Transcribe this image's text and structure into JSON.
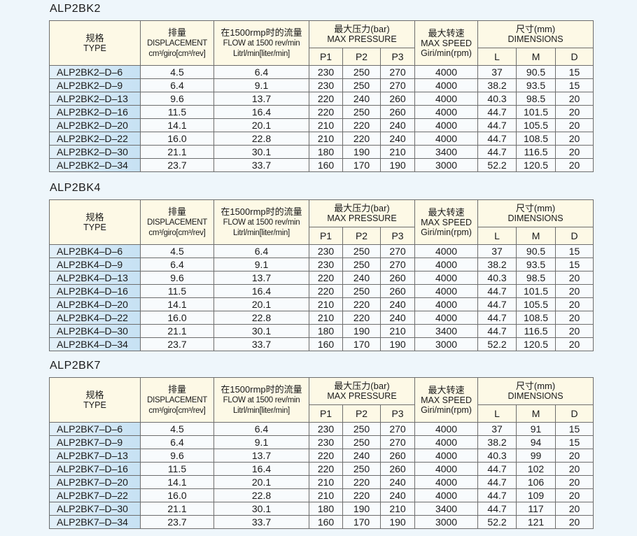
{
  "headers": {
    "type_cn": "规格",
    "type_en": "TYPE",
    "disp_cn": "排量",
    "disp_en": "DISPLACEMENT",
    "disp_unit": "cm³/giro[cm³/rev]",
    "flow_cn": "在1500rmp时的流量",
    "flow_en": "FLOW at 1500 rev/min",
    "flow_unit": "Litrl/min[liter/min]",
    "pres_cn": "最大压力(bar)",
    "pres_en": "MAX PRESSURE",
    "speed_cn": "最大转速",
    "speed_en": "MAX SPEED",
    "speed_unit": "Giri/min(rpm)",
    "dim_cn": "尺寸(mm)",
    "dim_en": "DIMENSIONS",
    "p1": "P1",
    "p2": "P2",
    "p3": "P3",
    "l": "L",
    "m": "M",
    "d": "D"
  },
  "tables": [
    {
      "title": "ALP2BK2",
      "rows": [
        [
          "ALP2BK2–D–6",
          "4.5",
          "6.4",
          "230",
          "250",
          "270",
          "4000",
          "37",
          "90.5",
          "15"
        ],
        [
          "ALP2BK2–D–9",
          "6.4",
          "9.1",
          "230",
          "250",
          "270",
          "4000",
          "38.2",
          "93.5",
          "15"
        ],
        [
          "ALP2BK2–D–13",
          "9.6",
          "13.7",
          "220",
          "240",
          "260",
          "4000",
          "40.3",
          "98.5",
          "20"
        ],
        [
          "ALP2BK2–D–16",
          "11.5",
          "16.4",
          "220",
          "250",
          "260",
          "4000",
          "44.7",
          "101.5",
          "20"
        ],
        [
          "ALP2BK2–D–20",
          "14.1",
          "20.1",
          "210",
          "220",
          "240",
          "4000",
          "44.7",
          "105.5",
          "20"
        ],
        [
          "ALP2BK2–D–22",
          "16.0",
          "22.8",
          "210",
          "220",
          "240",
          "4000",
          "44.7",
          "108.5",
          "20"
        ],
        [
          "ALP2BK2–D–30",
          "21.1",
          "30.1",
          "180",
          "190",
          "210",
          "3400",
          "44.7",
          "116.5",
          "20"
        ],
        [
          "ALP2BK2–D–34",
          "23.7",
          "33.7",
          "160",
          "170",
          "190",
          "3000",
          "52.2",
          "120.5",
          "20"
        ]
      ]
    },
    {
      "title": "ALP2BK4",
      "rows": [
        [
          "ALP2BK4–D–6",
          "4.5",
          "6.4",
          "230",
          "250",
          "270",
          "4000",
          "37",
          "90.5",
          "15"
        ],
        [
          "ALP2BK4–D–9",
          "6.4",
          "9.1",
          "230",
          "250",
          "270",
          "4000",
          "38.2",
          "93.5",
          "15"
        ],
        [
          "ALP2BK4–D–13",
          "9.6",
          "13.7",
          "220",
          "240",
          "260",
          "4000",
          "40.3",
          "98.5",
          "20"
        ],
        [
          "ALP2BK4–D–16",
          "11.5",
          "16.4",
          "220",
          "250",
          "260",
          "4000",
          "44.7",
          "101.5",
          "20"
        ],
        [
          "ALP2BK4–D–20",
          "14.1",
          "20.1",
          "210",
          "220",
          "240",
          "4000",
          "44.7",
          "105.5",
          "20"
        ],
        [
          "ALP2BK4–D–22",
          "16.0",
          "22.8",
          "210",
          "220",
          "240",
          "4000",
          "44.7",
          "108.5",
          "20"
        ],
        [
          "ALP2BK4–D–30",
          "21.1",
          "30.1",
          "180",
          "190",
          "210",
          "3400",
          "44.7",
          "116.5",
          "20"
        ],
        [
          "ALP2BK4–D–34",
          "23.7",
          "33.7",
          "160",
          "170",
          "190",
          "3000",
          "52.2",
          "120.5",
          "20"
        ]
      ]
    },
    {
      "title": "ALP2BK7",
      "rows": [
        [
          "ALP2BK7–D–6",
          "4.5",
          "6.4",
          "230",
          "250",
          "270",
          "4000",
          "37",
          "91",
          "15"
        ],
        [
          "ALP2BK7–D–9",
          "6.4",
          "9.1",
          "230",
          "250",
          "270",
          "4000",
          "38.2",
          "94",
          "15"
        ],
        [
          "ALP2BK7–D–13",
          "9.6",
          "13.7",
          "220",
          "240",
          "260",
          "4000",
          "40.3",
          "99",
          "20"
        ],
        [
          "ALP2BK7–D–16",
          "11.5",
          "16.4",
          "220",
          "250",
          "260",
          "4000",
          "44.7",
          "102",
          "20"
        ],
        [
          "ALP2BK7–D–20",
          "14.1",
          "20.1",
          "210",
          "220",
          "240",
          "4000",
          "44.7",
          "106",
          "20"
        ],
        [
          "ALP2BK7–D–22",
          "16.0",
          "22.8",
          "210",
          "220",
          "240",
          "4000",
          "44.7",
          "109",
          "20"
        ],
        [
          "ALP2BK7–D–30",
          "21.1",
          "30.1",
          "180",
          "190",
          "210",
          "3400",
          "44.7",
          "117",
          "20"
        ],
        [
          "ALP2BK7–D–34",
          "23.7",
          "33.7",
          "160",
          "170",
          "190",
          "3000",
          "52.2",
          "121",
          "20"
        ]
      ]
    }
  ]
}
